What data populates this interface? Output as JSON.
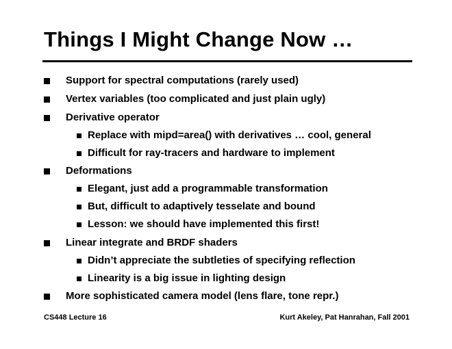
{
  "title": "Things I Might Change Now …",
  "bullets": [
    {
      "level": 1,
      "text": "Support for spectral computations (rarely used)"
    },
    {
      "level": 1,
      "text": "Vertex variables (too complicated and just plain ugly)"
    },
    {
      "level": 1,
      "text": "Derivative operator"
    },
    {
      "level": 2,
      "text": "Replace with mipd=area() with derivatives … cool, general"
    },
    {
      "level": 2,
      "text": "Difficult for ray-tracers and hardware to implement"
    },
    {
      "level": 1,
      "text": "Deformations"
    },
    {
      "level": 2,
      "text": "Elegant, just add a programmable transformation"
    },
    {
      "level": 2,
      "text": "But, difficult to adaptively tesselate and bound"
    },
    {
      "level": 2,
      "text": "Lesson: we should have implemented this first!"
    },
    {
      "level": 1,
      "text": "Linear integrate and BRDF shaders"
    },
    {
      "level": 2,
      "text": "Didn’t appreciate the subtleties of specifying reflection"
    },
    {
      "level": 2,
      "text": "Linearity is a big issue in lighting design"
    },
    {
      "level": 1,
      "text": "More sophisticated camera model (lens flare, tone repr.)"
    }
  ],
  "footer": {
    "left": "CS448 Lecture 16",
    "right": "Kurt Akeley, Pat Hanrahan, Fall 2001"
  }
}
